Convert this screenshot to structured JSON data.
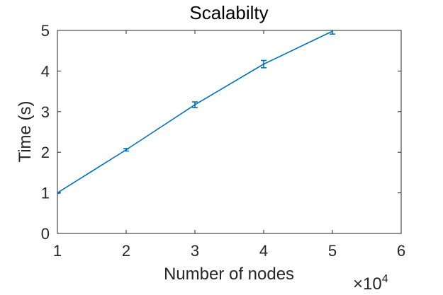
{
  "chart_data": {
    "type": "line",
    "title": "Scalabilty",
    "xlabel": "Number of nodes",
    "ylabel": "Time (s)",
    "x_multiplier_label": "×10",
    "x_multiplier_exponent": "4",
    "xlim": [
      1,
      6
    ],
    "ylim": [
      0,
      5
    ],
    "xticks": [
      1,
      2,
      3,
      4,
      5,
      6
    ],
    "yticks": [
      0,
      1,
      2,
      3,
      4,
      5
    ],
    "grid": false,
    "series": [
      {
        "x": [
          1,
          2,
          3,
          4,
          5
        ],
        "y": [
          1.0,
          2.06,
          3.17,
          4.17,
          4.98
        ],
        "err": [
          0.01,
          0.03,
          0.07,
          0.09,
          0.07
        ],
        "color": "#0072BD"
      }
    ]
  }
}
